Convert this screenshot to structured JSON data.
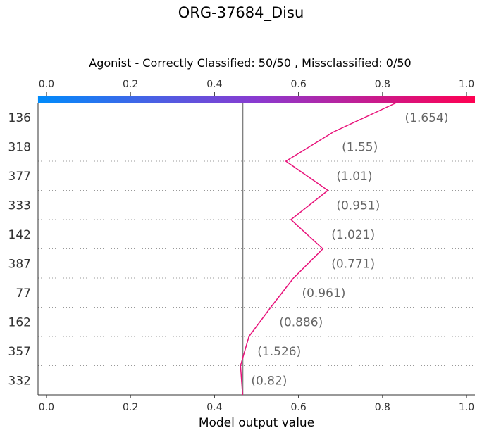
{
  "title": "ORG-37684_Disu",
  "subtitle": "Agonist - Correctly Classified: 50/50 , Missclassified: 0/50",
  "chart_data": {
    "type": "line",
    "xlabel": "Model output value",
    "xlim": [
      -0.02,
      1.02
    ],
    "xticks": [
      "0.0",
      "0.2",
      "0.4",
      "0.6",
      "0.8",
      "1.0"
    ],
    "base_value": 0.467,
    "colorbar": {
      "from": "#008bfb",
      "to": "#ff0052",
      "range": [
        0.0,
        1.0
      ]
    },
    "features": [
      {
        "name": "136",
        "value": "(1.654)"
      },
      {
        "name": "318",
        "value": "(1.55)"
      },
      {
        "name": "377",
        "value": "(1.01)"
      },
      {
        "name": "333",
        "value": "(0.951)"
      },
      {
        "name": "142",
        "value": "(1.021)"
      },
      {
        "name": "387",
        "value": "(0.771)"
      },
      {
        "name": "77",
        "value": "(0.961)"
      },
      {
        "name": "162",
        "value": "(0.886)"
      },
      {
        "name": "357",
        "value": "(1.526)"
      },
      {
        "name": "332",
        "value": "(0.82)"
      }
    ],
    "path": [
      0.833,
      0.683,
      0.57,
      0.67,
      0.582,
      0.658,
      0.588,
      0.534,
      0.482,
      0.462,
      0.467
    ],
    "line_color": "#e8127a"
  }
}
